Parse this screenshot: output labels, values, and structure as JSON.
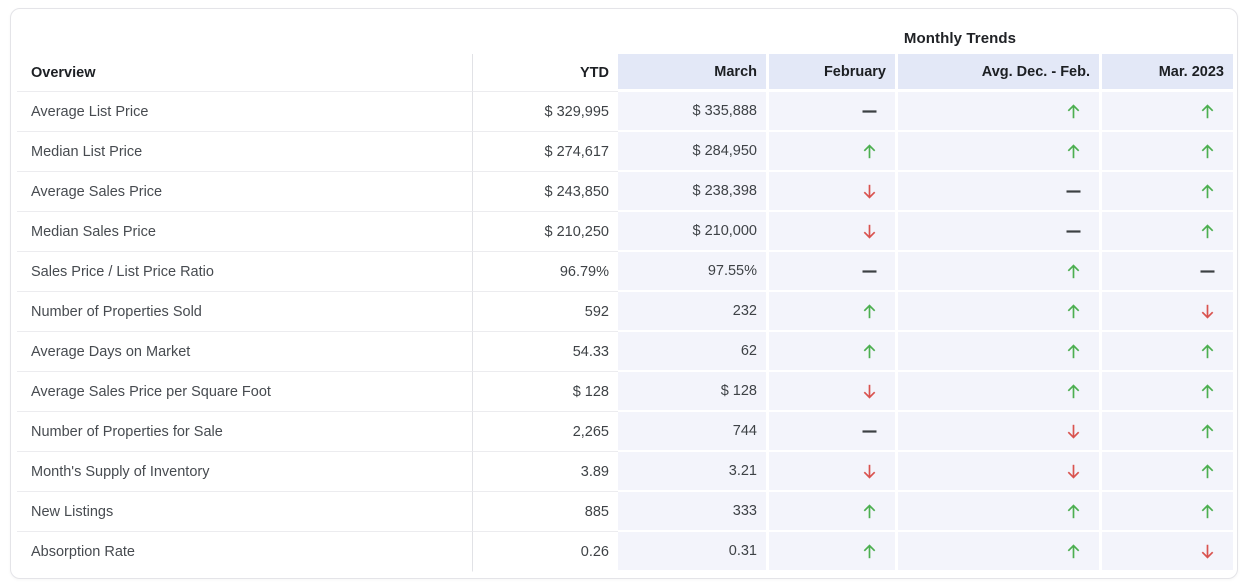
{
  "monthly_trends_title": "Monthly Trends",
  "table": {
    "headers": {
      "overview": "Overview",
      "ytd": "YTD",
      "march": "March",
      "february": "February",
      "avg_dec_feb": "Avg. Dec. - Feb.",
      "mar_2023": "Mar. 2023"
    },
    "rows": [
      {
        "label": "Average List Price",
        "ytd": "$ 329,995",
        "march": "$ 335,888",
        "trends": {
          "february": "flat",
          "avg_dec_feb": "up",
          "mar_2023": "up"
        }
      },
      {
        "label": "Median List Price",
        "ytd": "$ 274,617",
        "march": "$ 284,950",
        "trends": {
          "february": "up",
          "avg_dec_feb": "up",
          "mar_2023": "up"
        }
      },
      {
        "label": "Average Sales Price",
        "ytd": "$ 243,850",
        "march": "$ 238,398",
        "trends": {
          "february": "down",
          "avg_dec_feb": "flat",
          "mar_2023": "up"
        }
      },
      {
        "label": "Median Sales Price",
        "ytd": "$ 210,250",
        "march": "$ 210,000",
        "trends": {
          "february": "down",
          "avg_dec_feb": "flat",
          "mar_2023": "up"
        }
      },
      {
        "label": "Sales Price / List Price Ratio",
        "ytd": "96.79%",
        "march": "97.55%",
        "trends": {
          "february": "flat",
          "avg_dec_feb": "up",
          "mar_2023": "flat"
        }
      },
      {
        "label": "Number of Properties Sold",
        "ytd": "592",
        "march": "232",
        "trends": {
          "february": "up",
          "avg_dec_feb": "up",
          "mar_2023": "down"
        }
      },
      {
        "label": "Average Days on Market",
        "ytd": "54.33",
        "march": "62",
        "trends": {
          "february": "up",
          "avg_dec_feb": "up",
          "mar_2023": "up"
        }
      },
      {
        "label": "Average Sales Price per Square Foot",
        "ytd": "$ 128",
        "march": "$ 128",
        "trends": {
          "february": "down",
          "avg_dec_feb": "up",
          "mar_2023": "up"
        }
      },
      {
        "label": "Number of Properties for Sale",
        "ytd": "2,265",
        "march": "744",
        "trends": {
          "february": "flat",
          "avg_dec_feb": "down",
          "mar_2023": "up"
        }
      },
      {
        "label": "Month's Supply of Inventory",
        "ytd": "3.89",
        "march": "3.21",
        "trends": {
          "february": "down",
          "avg_dec_feb": "down",
          "mar_2023": "up"
        }
      },
      {
        "label": "New Listings",
        "ytd": "885",
        "march": "333",
        "trends": {
          "february": "up",
          "avg_dec_feb": "up",
          "mar_2023": "up"
        }
      },
      {
        "label": "Absorption Rate",
        "ytd": "0.26",
        "march": "0.31",
        "trends": {
          "february": "up",
          "avg_dec_feb": "up",
          "mar_2023": "down"
        }
      }
    ]
  },
  "colors": {
    "trend_up": "#4caf50",
    "trend_down": "#d9534f",
    "trend_flat": "#3c4043",
    "header_band_bg": "#e3e8f7",
    "row_band_bg": "#f3f4fb"
  }
}
